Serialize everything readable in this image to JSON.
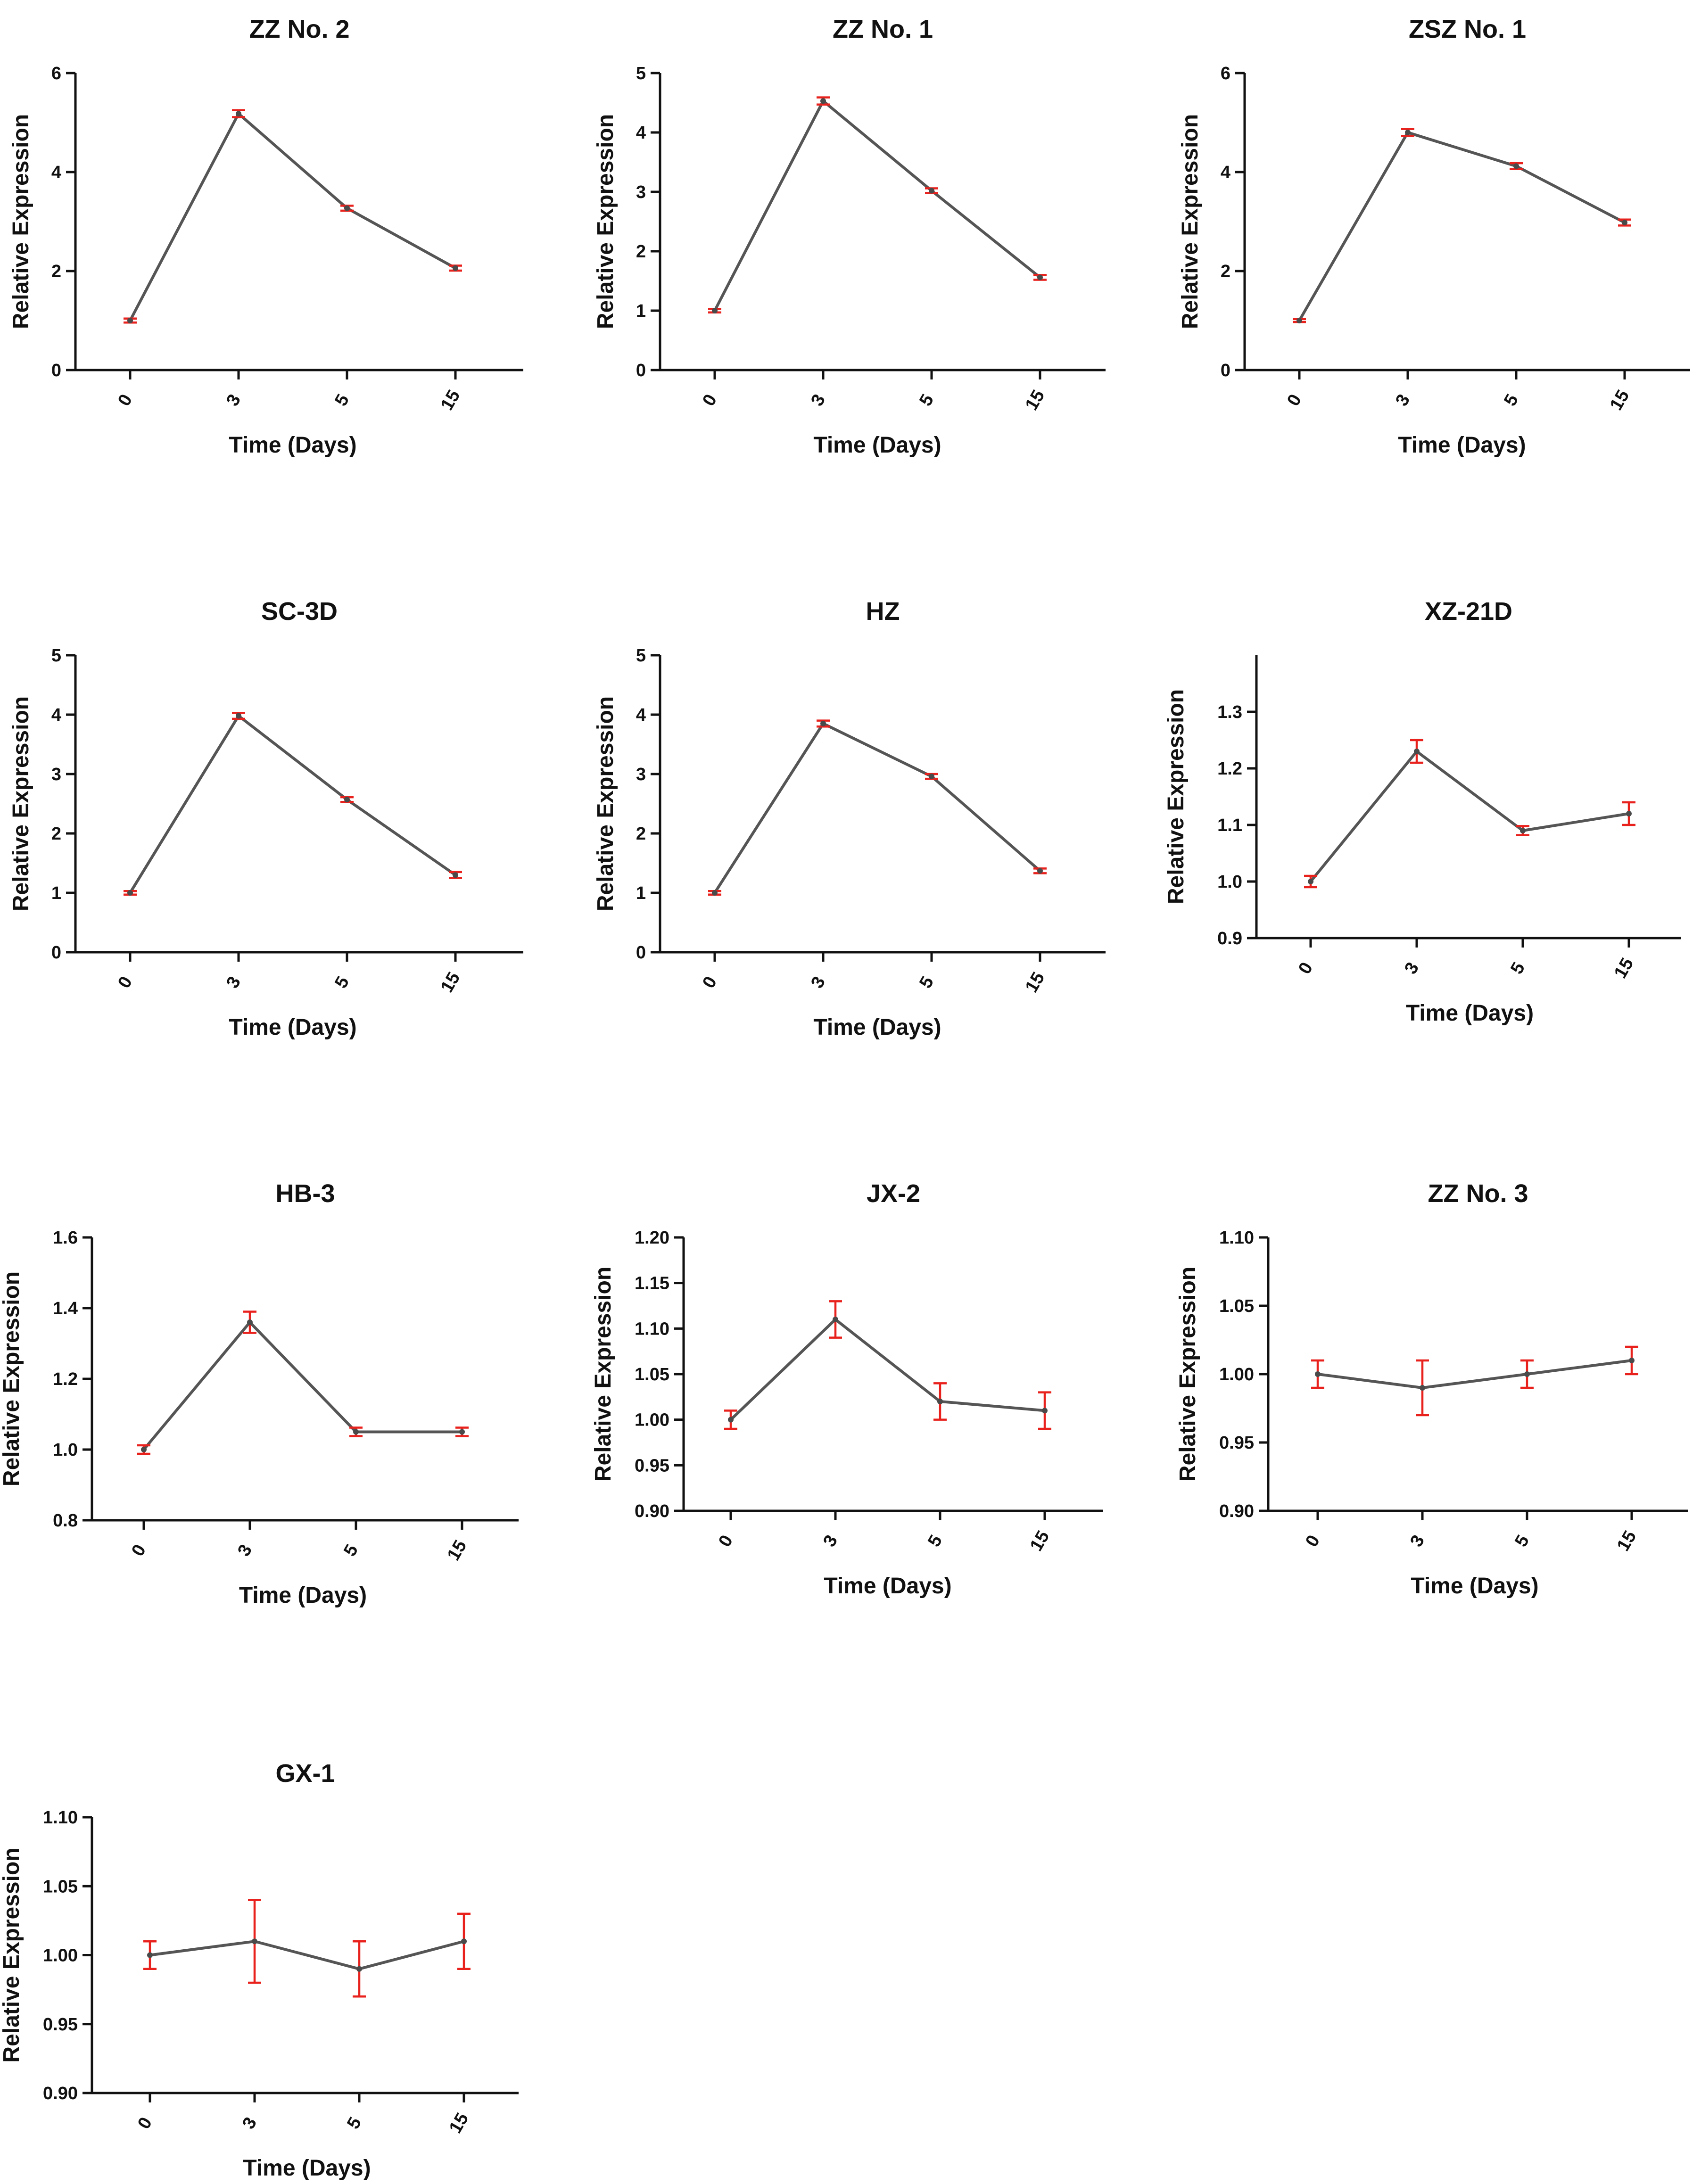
{
  "colors": {
    "line": "#555555",
    "error_bar": "#e8211d",
    "axis": "#111111",
    "background": "#ffffff"
  },
  "chart_data": [
    {
      "type": "line",
      "title": "ZZ No. 2",
      "xlabel": "Time (Days)",
      "ylabel": "Relative Expression",
      "categories": [
        "0",
        "3",
        "5",
        "15"
      ],
      "values": [
        1.0,
        5.18,
        3.27,
        2.06
      ],
      "errors": [
        0.04,
        0.07,
        0.05,
        0.05
      ],
      "ylim": [
        0,
        6
      ],
      "yticks": [
        "0",
        "2",
        "4",
        "6"
      ]
    },
    {
      "type": "line",
      "title": "ZZ No. 1",
      "xlabel": "Time (Days)",
      "ylabel": "Relative Expression",
      "categories": [
        "0",
        "3",
        "5",
        "15"
      ],
      "values": [
        1.0,
        4.53,
        3.02,
        1.56
      ],
      "errors": [
        0.03,
        0.06,
        0.04,
        0.04
      ],
      "ylim": [
        0,
        5
      ],
      "yticks": [
        "0",
        "1",
        "2",
        "3",
        "4",
        "5"
      ]
    },
    {
      "type": "line",
      "title": "ZSZ No. 1",
      "xlabel": "Time (Days)",
      "ylabel": "Relative Expression",
      "categories": [
        "0",
        "3",
        "5",
        "15"
      ],
      "values": [
        1.0,
        4.8,
        4.12,
        2.98
      ],
      "errors": [
        0.03,
        0.07,
        0.06,
        0.06
      ],
      "ylim": [
        0,
        6
      ],
      "yticks": [
        "0",
        "2",
        "4",
        "6"
      ]
    },
    {
      "type": "line",
      "title": "SC-3D",
      "xlabel": "Time (Days)",
      "ylabel": "Relative Expression",
      "categories": [
        "0",
        "3",
        "5",
        "15"
      ],
      "values": [
        1.0,
        3.98,
        2.57,
        1.3
      ],
      "errors": [
        0.03,
        0.05,
        0.04,
        0.05
      ],
      "ylim": [
        0,
        5
      ],
      "yticks": [
        "0",
        "1",
        "2",
        "3",
        "4",
        "5"
      ]
    },
    {
      "type": "line",
      "title": "HZ",
      "xlabel": "Time (Days)",
      "ylabel": "Relative Expression",
      "categories": [
        "0",
        "3",
        "5",
        "15"
      ],
      "values": [
        1.0,
        3.85,
        2.96,
        1.37
      ],
      "errors": [
        0.03,
        0.05,
        0.04,
        0.04
      ],
      "ylim": [
        0,
        5
      ],
      "yticks": [
        "0",
        "1",
        "2",
        "3",
        "4",
        "5"
      ]
    },
    {
      "type": "line",
      "title": "XZ-21D",
      "xlabel": "Time (Days)",
      "ylabel": "Relative Expression",
      "categories": [
        "0",
        "3",
        "5",
        "15"
      ],
      "values": [
        1.0,
        1.23,
        1.09,
        1.12
      ],
      "errors": [
        0.01,
        0.02,
        0.008,
        0.02
      ],
      "ylim": [
        0.9,
        1.4
      ],
      "yticks": [
        "0.9",
        "1.0",
        "1.1",
        "1.2",
        "1.3"
      ]
    },
    {
      "type": "line",
      "title": "HB-3",
      "xlabel": "Time (Days)",
      "ylabel": "Relative Expression",
      "categories": [
        "0",
        "3",
        "5",
        "15"
      ],
      "values": [
        1.0,
        1.36,
        1.05,
        1.05
      ],
      "errors": [
        0.012,
        0.03,
        0.012,
        0.012
      ],
      "ylim": [
        0.8,
        1.6
      ],
      "yticks": [
        "0.8",
        "1.0",
        "1.2",
        "1.4",
        "1.6"
      ]
    },
    {
      "type": "line",
      "title": "JX-2",
      "xlabel": "Time (Days)",
      "ylabel": "Relative Expression",
      "categories": [
        "0",
        "3",
        "5",
        "15"
      ],
      "values": [
        1.0,
        1.11,
        1.02,
        1.01
      ],
      "errors": [
        0.01,
        0.02,
        0.02,
        0.02
      ],
      "ylim": [
        0.9,
        1.2
      ],
      "yticks": [
        "0.90",
        "0.95",
        "1.00",
        "1.05",
        "1.10",
        "1.15",
        "1.20"
      ]
    },
    {
      "type": "line",
      "title": "ZZ No. 3",
      "xlabel": "Time (Days)",
      "ylabel": "Relative Expression",
      "categories": [
        "0",
        "3",
        "5",
        "15"
      ],
      "values": [
        1.0,
        0.99,
        1.0,
        1.01
      ],
      "errors": [
        0.01,
        0.02,
        0.01,
        0.01
      ],
      "ylim": [
        0.9,
        1.1
      ],
      "yticks": [
        "0.90",
        "0.95",
        "1.00",
        "1.05",
        "1.10"
      ]
    },
    {
      "type": "line",
      "title": "GX-1",
      "xlabel": "Time (Days)",
      "ylabel": "Relative Expression",
      "categories": [
        "0",
        "3",
        "5",
        "15"
      ],
      "values": [
        1.0,
        1.01,
        0.99,
        1.01
      ],
      "errors": [
        0.01,
        0.03,
        0.02,
        0.02
      ],
      "ylim": [
        0.9,
        1.1
      ],
      "yticks": [
        "0.90",
        "0.95",
        "1.00",
        "1.05",
        "1.10"
      ]
    }
  ]
}
